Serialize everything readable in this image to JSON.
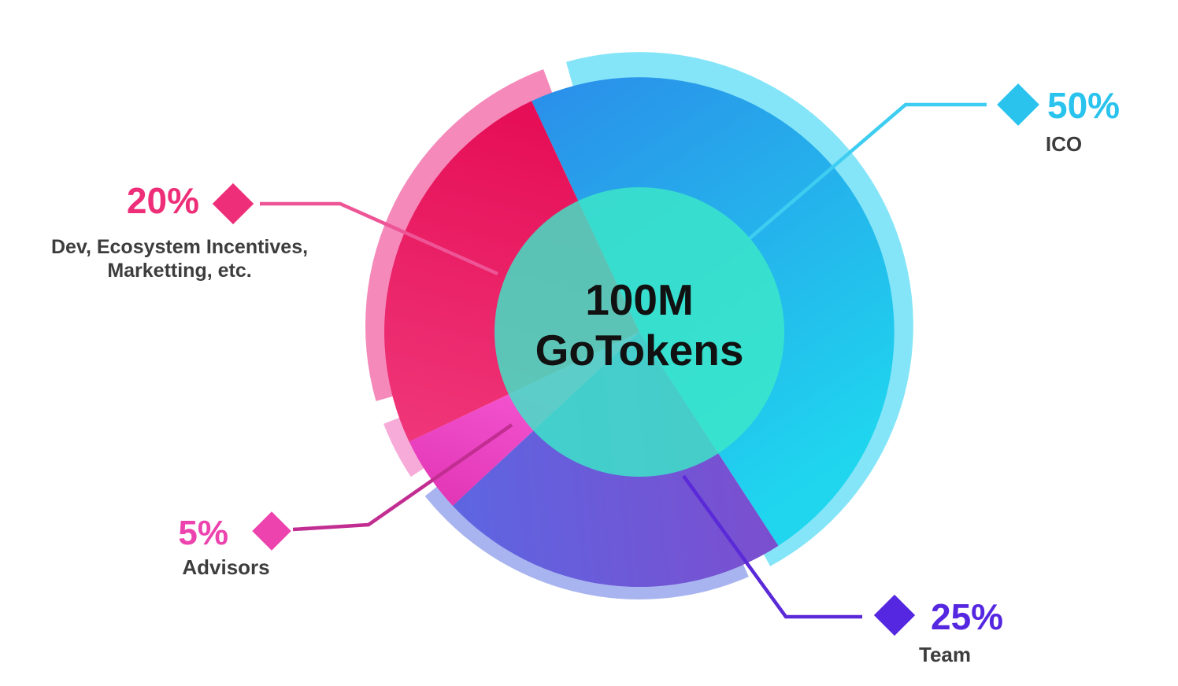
{
  "center": {
    "line1": "100M",
    "line2": "GoTokens"
  },
  "chart_data": {
    "type": "pie",
    "title": "100M GoTokens token distribution",
    "center_label": "100M GoTokens",
    "legend_position": "callouts around chart with diamond markers and leader lines",
    "grid": false,
    "segments": [
      {
        "id": "ico",
        "label": "ICO",
        "value": 50,
        "display": "50%",
        "color_start": "#2b8be9",
        "color_end": "#1fd6ee",
        "halo_color": "#85e5f8",
        "accent": "#29c3ee",
        "line_color": "#3ecdf1",
        "angle_start": 303,
        "angle_end": 475
      },
      {
        "id": "dev",
        "label": "Dev, Ecosystem Incentives, Marketting, etc.",
        "value": 20,
        "display": "20%",
        "color_start": "#e60e56",
        "color_end": "#f03a7c",
        "halo_color": "#f489ba",
        "accent": "#ee2e78",
        "line_color": "#ee5596",
        "angle_start": 115,
        "angle_end": 205.5
      },
      {
        "id": "advisors",
        "label": "Advisors",
        "value": 5,
        "display": "5%",
        "color_start": "#f455d2",
        "color_end": "#e033b2",
        "halo_color": "#f6abd8",
        "accent": "#ec43ae",
        "line_color": "#c22d92",
        "angle_start": 205.5,
        "angle_end": 223
      },
      {
        "id": "team",
        "label": "Team",
        "value": 25,
        "display": "25%",
        "color_start": "#5a68e3",
        "color_end": "#7e4ccd",
        "halo_color": "#a8b4ef",
        "accent": "#5527e0",
        "line_color": "#5b2ad8",
        "angle_start": 223,
        "angle_end": 303
      }
    ]
  },
  "callouts": {
    "ico": {
      "pct": "50%",
      "name": "ICO"
    },
    "dev": {
      "pct": "20%",
      "line1": "Dev, Ecosystem Incentives,",
      "line2": "Marketting, etc."
    },
    "advisors": {
      "pct": "5%",
      "name": "Advisors"
    },
    "team": {
      "pct": "25%",
      "name": "Team"
    }
  },
  "colors": {
    "background": "#ffffff",
    "text": "#3d3d3d",
    "center_text": "#111111",
    "center_circle": "rgba(60,232,200,0.82)"
  }
}
